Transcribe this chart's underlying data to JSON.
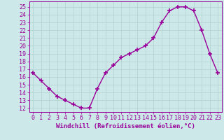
{
  "x": [
    0,
    1,
    2,
    3,
    4,
    5,
    6,
    7,
    8,
    9,
    10,
    11,
    12,
    13,
    14,
    15,
    16,
    17,
    18,
    19,
    20,
    21,
    22,
    23
  ],
  "y": [
    16.5,
    15.5,
    14.5,
    13.5,
    13.0,
    12.5,
    12.0,
    12.0,
    14.5,
    16.5,
    17.5,
    18.5,
    19.0,
    19.5,
    20.0,
    21.0,
    23.0,
    24.5,
    25.0,
    25.0,
    24.5,
    22.0,
    19.0,
    16.5
  ],
  "color": "#990099",
  "bg_color": "#cce8e8",
  "grid_color": "#b0d0d0",
  "xlabel": "Windchill (Refroidissement éolien,°C)",
  "ylabel_ticks": [
    12,
    13,
    14,
    15,
    16,
    17,
    18,
    19,
    20,
    21,
    22,
    23,
    24,
    25
  ],
  "ylim": [
    11.5,
    25.7
  ],
  "xlim": [
    -0.5,
    23.5
  ],
  "xtick_labels": [
    "0",
    "1",
    "2",
    "3",
    "4",
    "5",
    "6",
    "7",
    "8",
    "9",
    "10",
    "11",
    "12",
    "13",
    "14",
    "15",
    "16",
    "17",
    "18",
    "19",
    "20",
    "21",
    "22",
    "23"
  ],
  "marker": "+",
  "markersize": 4,
  "linewidth": 1.0,
  "xlabel_fontsize": 6.5,
  "tick_fontsize": 6.0
}
